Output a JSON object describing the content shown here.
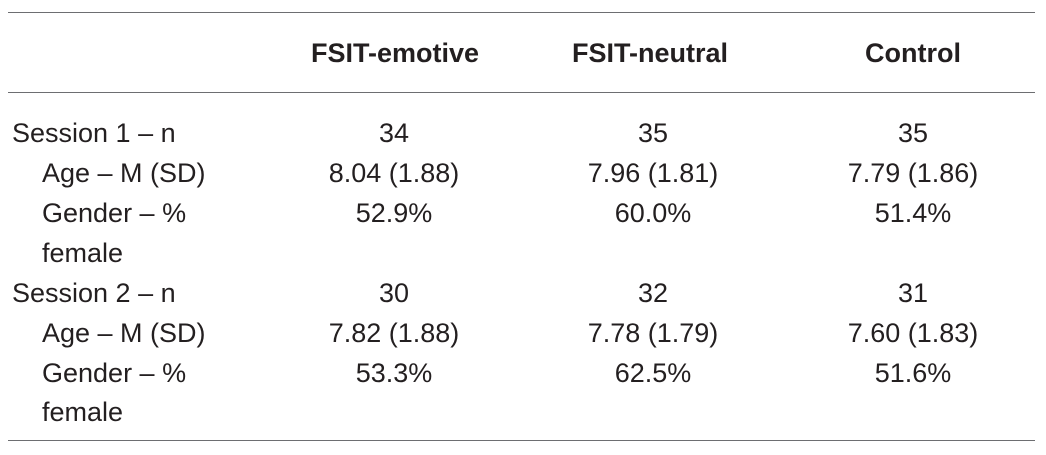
{
  "table": {
    "columns": [
      "FSIT-emotive",
      "FSIT-neutral",
      "Control"
    ],
    "rows": [
      {
        "label": "Session 1 – n",
        "values": [
          "34",
          "35",
          "35"
        ]
      },
      {
        "label": "Age – M (SD)",
        "values": [
          "8.04 (1.88)",
          "7.96 (1.81)",
          "7.79 (1.86)"
        ]
      },
      {
        "label": "Gender – %",
        "values": [
          "52.9%",
          "60.0%",
          "51.4%"
        ]
      },
      {
        "label": "female",
        "values": [
          "",
          "",
          ""
        ]
      },
      {
        "label": "Session 2 – n",
        "values": [
          "30",
          "32",
          "31"
        ]
      },
      {
        "label": "Age – M (SD)",
        "values": [
          "7.82 (1.88)",
          "7.78 (1.79)",
          "7.60 (1.83)"
        ]
      },
      {
        "label": "Gender – %",
        "values": [
          "53.3%",
          "62.5%",
          "51.6%"
        ]
      },
      {
        "label": "female",
        "values": [
          "",
          "",
          ""
        ]
      }
    ]
  }
}
